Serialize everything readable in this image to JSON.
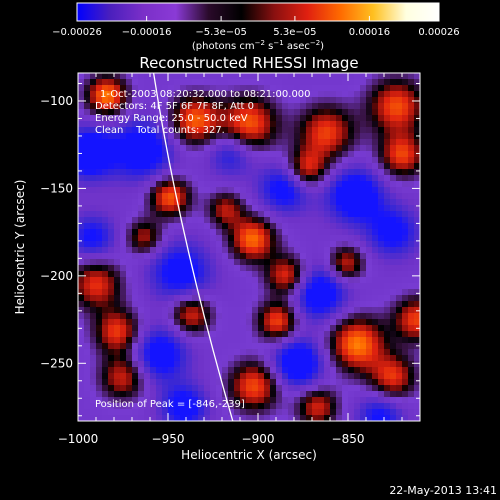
{
  "chart_data": {
    "type": "heatmap",
    "title": "Reconstructed RHESSI Image",
    "xlabel": "Heliocentric X (arcsec)",
    "ylabel": "Heliocentric Y (arcsec)",
    "xlim": [
      -1000,
      -810
    ],
    "ylim": [
      -283,
      -84
    ],
    "xticks": [
      -1000,
      -950,
      -900,
      -850
    ],
    "xtick_labels": [
      "−1000",
      "−950",
      "−900",
      "−850"
    ],
    "yticks": [
      -100,
      -150,
      -200,
      -250
    ],
    "ytick_labels": [
      "−100",
      "−150",
      "−200",
      "−250"
    ],
    "colorbar": {
      "min": -0.00026,
      "max": 0.00026,
      "ticks": [
        -0.00026,
        -0.00016,
        -5.3e-05,
        5.3e-05,
        0.00016,
        0.00026
      ],
      "tick_labels": [
        "−0.00026",
        "−0.00016",
        "−5.3e−05",
        "5.3e−05",
        "0.00016",
        "0.00026"
      ],
      "units": "(photons cm",
      "units_sup1": "−2",
      "units_mid": " s",
      "units_sup2": "−1",
      "units_end": " asec",
      "units_sup3": "−2",
      "units_close": ")",
      "colors": [
        "#0000ff",
        "#4a1fbd",
        "#7a2fc8",
        "#8a3ad6",
        "#2a0a2a",
        "#000000",
        "#8a1010",
        "#e02010",
        "#ff6a00",
        "#ffc020",
        "#ffffe0",
        "#ffffff"
      ]
    },
    "annotations": {
      "time_range": "1-Oct-2003 08:20:32.000 to 08:21:00.000",
      "detectors": "Detectors: 4F 5F 6F 7F 8F, Att 0",
      "energy": "Energy Range: 25.0 - 50.0 keV",
      "clean": "Clean    Total counts: 327.",
      "peak": "Position of Peak = [-846,-239]"
    },
    "peak": {
      "x": -846,
      "y": -239
    },
    "limb_arc": [
      [
        -958,
        -84
      ],
      [
        -940,
        -180
      ],
      [
        -914,
        -283
      ]
    ],
    "blobs": [
      {
        "x": -984,
        "y": -97,
        "v": 1.0,
        "s": 8
      },
      {
        "x": -935,
        "y": -111,
        "v": 0.9,
        "s": 10
      },
      {
        "x": -905,
        "y": -113,
        "v": 0.9,
        "s": 11
      },
      {
        "x": -862,
        "y": -118,
        "v": 0.8,
        "s": 11
      },
      {
        "x": -823,
        "y": -103,
        "v": 0.85,
        "s": 11
      },
      {
        "x": -820,
        "y": -131,
        "v": 0.8,
        "s": 9
      },
      {
        "x": -873,
        "y": -139,
        "v": 0.75,
        "s": 8
      },
      {
        "x": -949,
        "y": -155,
        "v": 0.9,
        "s": 8
      },
      {
        "x": -918,
        "y": -162,
        "v": 0.6,
        "s": 7
      },
      {
        "x": -963,
        "y": -178,
        "v": 0.6,
        "s": 7
      },
      {
        "x": -903,
        "y": -179,
        "v": 0.95,
        "s": 9
      },
      {
        "x": -884,
        "y": -200,
        "v": 0.8,
        "s": 8
      },
      {
        "x": -851,
        "y": -193,
        "v": 0.7,
        "s": 7
      },
      {
        "x": -990,
        "y": -205,
        "v": 0.75,
        "s": 10
      },
      {
        "x": -978,
        "y": -232,
        "v": 0.8,
        "s": 9
      },
      {
        "x": -937,
        "y": -222,
        "v": 0.75,
        "s": 8
      },
      {
        "x": -889,
        "y": -226,
        "v": 0.85,
        "s": 8
      },
      {
        "x": -845,
        "y": -239,
        "v": 1.0,
        "s": 11
      },
      {
        "x": -812,
        "y": -225,
        "v": 0.8,
        "s": 9
      },
      {
        "x": -975,
        "y": -258,
        "v": 0.7,
        "s": 9
      },
      {
        "x": -902,
        "y": -263,
        "v": 0.85,
        "s": 10
      },
      {
        "x": -867,
        "y": -275,
        "v": 0.7,
        "s": 8
      },
      {
        "x": -825,
        "y": -258,
        "v": 0.75,
        "s": 9
      },
      {
        "x": -994,
        "y": -130,
        "v": -0.9,
        "s": 10
      },
      {
        "x": -964,
        "y": -128,
        "v": -0.8,
        "s": 12
      },
      {
        "x": -885,
        "y": -150,
        "v": -0.7,
        "s": 10
      },
      {
        "x": -846,
        "y": -154,
        "v": -0.85,
        "s": 11
      },
      {
        "x": -943,
        "y": -198,
        "v": -0.7,
        "s": 12
      },
      {
        "x": -866,
        "y": -210,
        "v": -0.8,
        "s": 11
      },
      {
        "x": -825,
        "y": -175,
        "v": -0.65,
        "s": 10
      },
      {
        "x": -992,
        "y": -178,
        "v": -0.6,
        "s": 9
      },
      {
        "x": -955,
        "y": -245,
        "v": -0.75,
        "s": 11
      },
      {
        "x": -878,
        "y": -250,
        "v": -0.9,
        "s": 10
      },
      {
        "x": -941,
        "y": -275,
        "v": -0.7,
        "s": 9
      },
      {
        "x": -832,
        "y": -280,
        "v": -0.6,
        "s": 9
      },
      {
        "x": -915,
        "y": -130,
        "v": -0.55,
        "s": 9
      }
    ]
  },
  "footer": {
    "timestamp": "22-May-2013 13:41"
  },
  "colors": {
    "background": "#000000",
    "foreground": "#ffffff"
  }
}
